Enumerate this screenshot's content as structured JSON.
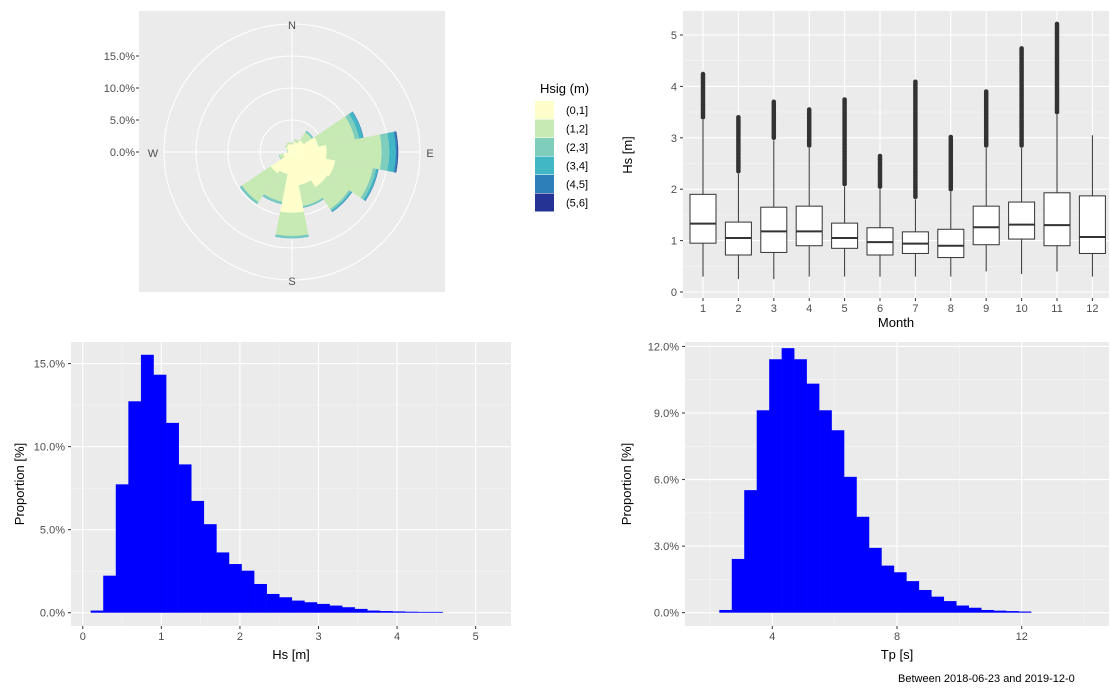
{
  "colors": {
    "panel_bg": "#ebebeb",
    "grid": "#ffffff",
    "hist_fill": "#0000ff",
    "box_fill": "#ffffff",
    "box_stroke": "#333333",
    "outlier": "#333333"
  },
  "caption": "Between 2018-06-23 and 2019-12-0",
  "chart_data": [
    {
      "id": "wave-rose",
      "type": "rose",
      "compass": [
        "N",
        "E",
        "S",
        "W"
      ],
      "r_ticks": [
        "0.0%",
        "5.0%",
        "10.0%",
        "15.0%"
      ],
      "r_tick_values": [
        0,
        5,
        10,
        15
      ],
      "r_max": 21,
      "legend": {
        "title": "Hsig (m)",
        "placement": "right",
        "entries": [
          {
            "label": "(0,1]",
            "color": "#ffffcc"
          },
          {
            "label": "(1,2]",
            "color": "#c7e9b4"
          },
          {
            "label": "(2,3]",
            "color": "#7fcdbb"
          },
          {
            "label": "(3,4]",
            "color": "#41b6c4"
          },
          {
            "label": "(4,5]",
            "color": "#2c7fb8"
          },
          {
            "label": "(5,6]",
            "color": "#253494"
          }
        ]
      },
      "sectors_deg": [
        0,
        22.5,
        45,
        67.5,
        90,
        112.5,
        135,
        157.5,
        180,
        202.5,
        225,
        247.5,
        270,
        292.5,
        315,
        337.5
      ],
      "series": [
        {
          "name": "(0,1]",
          "values": [
            1.2,
            1.6,
            2.2,
            4.2,
            5.4,
            6.9,
            6.6,
            5.3,
            9.5,
            3.5,
            4.0,
            1.4,
            0.6,
            0.7,
            1.1,
            1.3
          ]
        },
        {
          "name": "(1,2]",
          "values": [
            0.3,
            0.5,
            1.5,
            5.8,
            8.6,
            6.0,
            4.1,
            3.3,
            3.6,
            4.4,
            5.4,
            0.6,
            0.2,
            0.2,
            0.3,
            0.3
          ]
        },
        {
          "name": "(2,3]",
          "values": [
            0.0,
            0.0,
            0.2,
            0.7,
            1.2,
            0.5,
            0.3,
            0.2,
            0.3,
            0.3,
            0.3,
            0.1,
            0.0,
            0.0,
            0.0,
            0.0
          ]
        },
        {
          "name": "(3,4]",
          "values": [
            0.0,
            0.0,
            0.1,
            0.6,
            1.0,
            0.3,
            0.2,
            0.1,
            0.1,
            0.1,
            0.1,
            0.0,
            0.0,
            0.0,
            0.0,
            0.0
          ]
        },
        {
          "name": "(4,5]",
          "values": [
            0.0,
            0.0,
            0.0,
            0.1,
            0.3,
            0.1,
            0.1,
            0.0,
            0.0,
            0.0,
            0.0,
            0.0,
            0.0,
            0.0,
            0.0,
            0.0
          ]
        },
        {
          "name": "(5,6]",
          "values": [
            0.0,
            0.0,
            0.0,
            0.0,
            0.1,
            0.0,
            0.0,
            0.0,
            0.0,
            0.0,
            0.0,
            0.0,
            0.0,
            0.0,
            0.0,
            0.0
          ]
        }
      ]
    },
    {
      "id": "monthly-boxplot",
      "type": "box",
      "xlabel": "Month",
      "ylabel": "Hs [m]",
      "categories": [
        "1",
        "2",
        "3",
        "4",
        "5",
        "6",
        "7",
        "8",
        "9",
        "10",
        "11",
        "12"
      ],
      "ylim": [
        0,
        5.4
      ],
      "yticks": [
        0,
        1,
        2,
        3,
        4,
        5
      ],
      "boxes": [
        {
          "min": 0.3,
          "q1": 0.95,
          "median": 1.33,
          "q3": 1.9,
          "max": 3.35,
          "out_min": 3.4,
          "out_max": 4.25
        },
        {
          "min": 0.25,
          "q1": 0.72,
          "median": 1.05,
          "q3": 1.36,
          "max": 2.3,
          "out_min": 2.35,
          "out_max": 3.42
        },
        {
          "min": 0.25,
          "q1": 0.77,
          "median": 1.18,
          "q3": 1.65,
          "max": 2.95,
          "out_min": 3.0,
          "out_max": 3.7
        },
        {
          "min": 0.3,
          "q1": 0.9,
          "median": 1.18,
          "q3": 1.67,
          "max": 2.8,
          "out_min": 2.85,
          "out_max": 3.58
        },
        {
          "min": 0.3,
          "q1": 0.85,
          "median": 1.05,
          "q3": 1.34,
          "max": 2.05,
          "out_min": 2.1,
          "out_max": 3.77
        },
        {
          "min": 0.3,
          "q1": 0.72,
          "median": 0.97,
          "q3": 1.25,
          "max": 2.0,
          "out_min": 2.05,
          "out_max": 2.65
        },
        {
          "min": 0.3,
          "q1": 0.75,
          "median": 0.94,
          "q3": 1.17,
          "max": 1.8,
          "out_min": 1.85,
          "out_max": 4.12
        },
        {
          "min": 0.3,
          "q1": 0.67,
          "median": 0.9,
          "q3": 1.22,
          "max": 1.95,
          "out_min": 2.0,
          "out_max": 3.02
        },
        {
          "min": 0.4,
          "q1": 0.92,
          "median": 1.26,
          "q3": 1.67,
          "max": 2.8,
          "out_min": 2.85,
          "out_max": 3.93
        },
        {
          "min": 0.35,
          "q1": 1.03,
          "median": 1.31,
          "q3": 1.75,
          "max": 2.8,
          "out_min": 2.85,
          "out_max": 4.75
        },
        {
          "min": 0.4,
          "q1": 0.9,
          "median": 1.3,
          "q3": 1.93,
          "max": 3.45,
          "out_min": 3.5,
          "out_max": 5.22
        },
        {
          "min": 0.3,
          "q1": 0.75,
          "median": 1.07,
          "q3": 1.87,
          "max": 3.05,
          "out_min": null,
          "out_max": null
        }
      ]
    },
    {
      "id": "hs-histogram",
      "type": "bar",
      "xlabel": "Hs [m]",
      "ylabel": "Proportion [%]",
      "xlim": [
        -0.15,
        5.45
      ],
      "ylim": [
        -0.8,
        16.3
      ],
      "xticks": [
        0,
        1,
        2,
        3,
        4,
        5
      ],
      "yticks": [
        0,
        5,
        10,
        15
      ],
      "ytick_labels": [
        "0.0%",
        "5.0%",
        "10.0%",
        "15.0%"
      ],
      "bin_width": 0.16,
      "bin_start": 0.1,
      "values": [
        0.1,
        2.2,
        7.7,
        12.7,
        15.5,
        14.3,
        11.4,
        8.9,
        6.7,
        5.3,
        3.6,
        2.9,
        2.5,
        1.7,
        1.1,
        0.9,
        0.7,
        0.6,
        0.5,
        0.4,
        0.3,
        0.2,
        0.1,
        0.07,
        0.05,
        0.03,
        0.02,
        0.02
      ]
    },
    {
      "id": "tp-histogram",
      "type": "bar",
      "xlabel": "Tp [s]",
      "ylabel": "Proportion [%]",
      "xlim": [
        1.2,
        14.8
      ],
      "ylim": [
        -0.6,
        12.2
      ],
      "xticks": [
        4,
        8,
        12
      ],
      "yticks": [
        0,
        3,
        6,
        9,
        12
      ],
      "ytick_labels": [
        "0.0%",
        "3.0%",
        "6.0%",
        "9.0%",
        "12.0%"
      ],
      "bin_width": 0.4,
      "bin_start": 2.3,
      "values": [
        0.1,
        2.4,
        5.5,
        9.1,
        11.4,
        11.9,
        11.4,
        10.3,
        9.1,
        8.2,
        6.1,
        4.3,
        2.9,
        2.1,
        1.8,
        1.4,
        1.0,
        0.7,
        0.5,
        0.3,
        0.2,
        0.1,
        0.07,
        0.05,
        0.03
      ]
    }
  ]
}
